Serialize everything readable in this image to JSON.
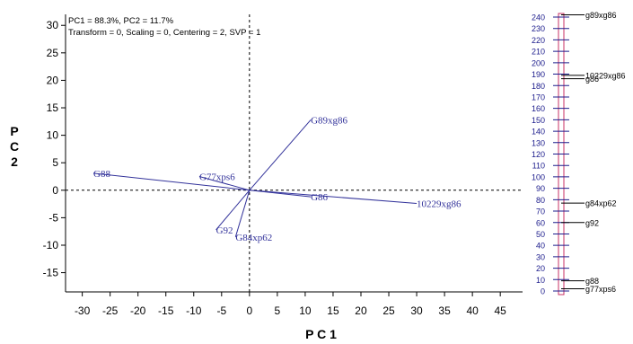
{
  "chart_data": {
    "type": "biplot",
    "xlabel": "P C 1",
    "ylabel": [
      "P",
      "C",
      "2"
    ],
    "xlim": [
      -33,
      49
    ],
    "ylim": [
      -18.5,
      32
    ],
    "xticks": [
      -30,
      -25,
      -20,
      -15,
      -10,
      -5,
      0,
      5,
      10,
      15,
      20,
      25,
      30,
      35,
      40,
      45
    ],
    "yticks": [
      -15,
      -10,
      -5,
      0,
      5,
      10,
      15,
      20,
      25,
      30
    ],
    "annotations": [
      "PC1 = 88.3%, PC2 = 11.7%",
      "Transform = 0, Scaling = 0, Centering = 2, SVP = 1"
    ],
    "vectors": [
      {
        "label": "G88",
        "x": -28,
        "y": 3.1
      },
      {
        "label": "G77xps6",
        "x": -9,
        "y": 2.5
      },
      {
        "label": "G89xg86",
        "x": 11,
        "y": 12.8
      },
      {
        "label": "G86",
        "x": 11,
        "y": -1.2
      },
      {
        "label": "10229xg86",
        "x": 30,
        "y": -2.4
      },
      {
        "label": "G92",
        "x": -6,
        "y": -7.2
      },
      {
        "label": "G84xp62",
        "x": -2.5,
        "y": -8.5
      }
    ],
    "scale_bar": {
      "min": 0,
      "max": 240,
      "step": 10,
      "ticks": [
        "0",
        "10",
        "20",
        "30",
        "40",
        "50",
        "60",
        "70",
        "80",
        "90",
        "100",
        "110",
        "120",
        "130",
        "140",
        "150",
        "160",
        "170",
        "180",
        "190",
        "200",
        "210",
        "220",
        "230",
        "240"
      ],
      "markers": [
        {
          "label": "g89xg86",
          "value": 242
        },
        {
          "label": "10229xg86",
          "value": 189
        },
        {
          "label": "g86",
          "value": 186
        },
        {
          "label": "g84xp62",
          "value": 77
        },
        {
          "label": "g92",
          "value": 60
        },
        {
          "label": "g88",
          "value": 9
        },
        {
          "label": "g77xps6",
          "value": 2
        }
      ]
    },
    "colors": {
      "axes": "#000000",
      "vectors": "#32329a",
      "scale_bar": "#c83266",
      "scale_text": "#1c1c8c"
    }
  }
}
